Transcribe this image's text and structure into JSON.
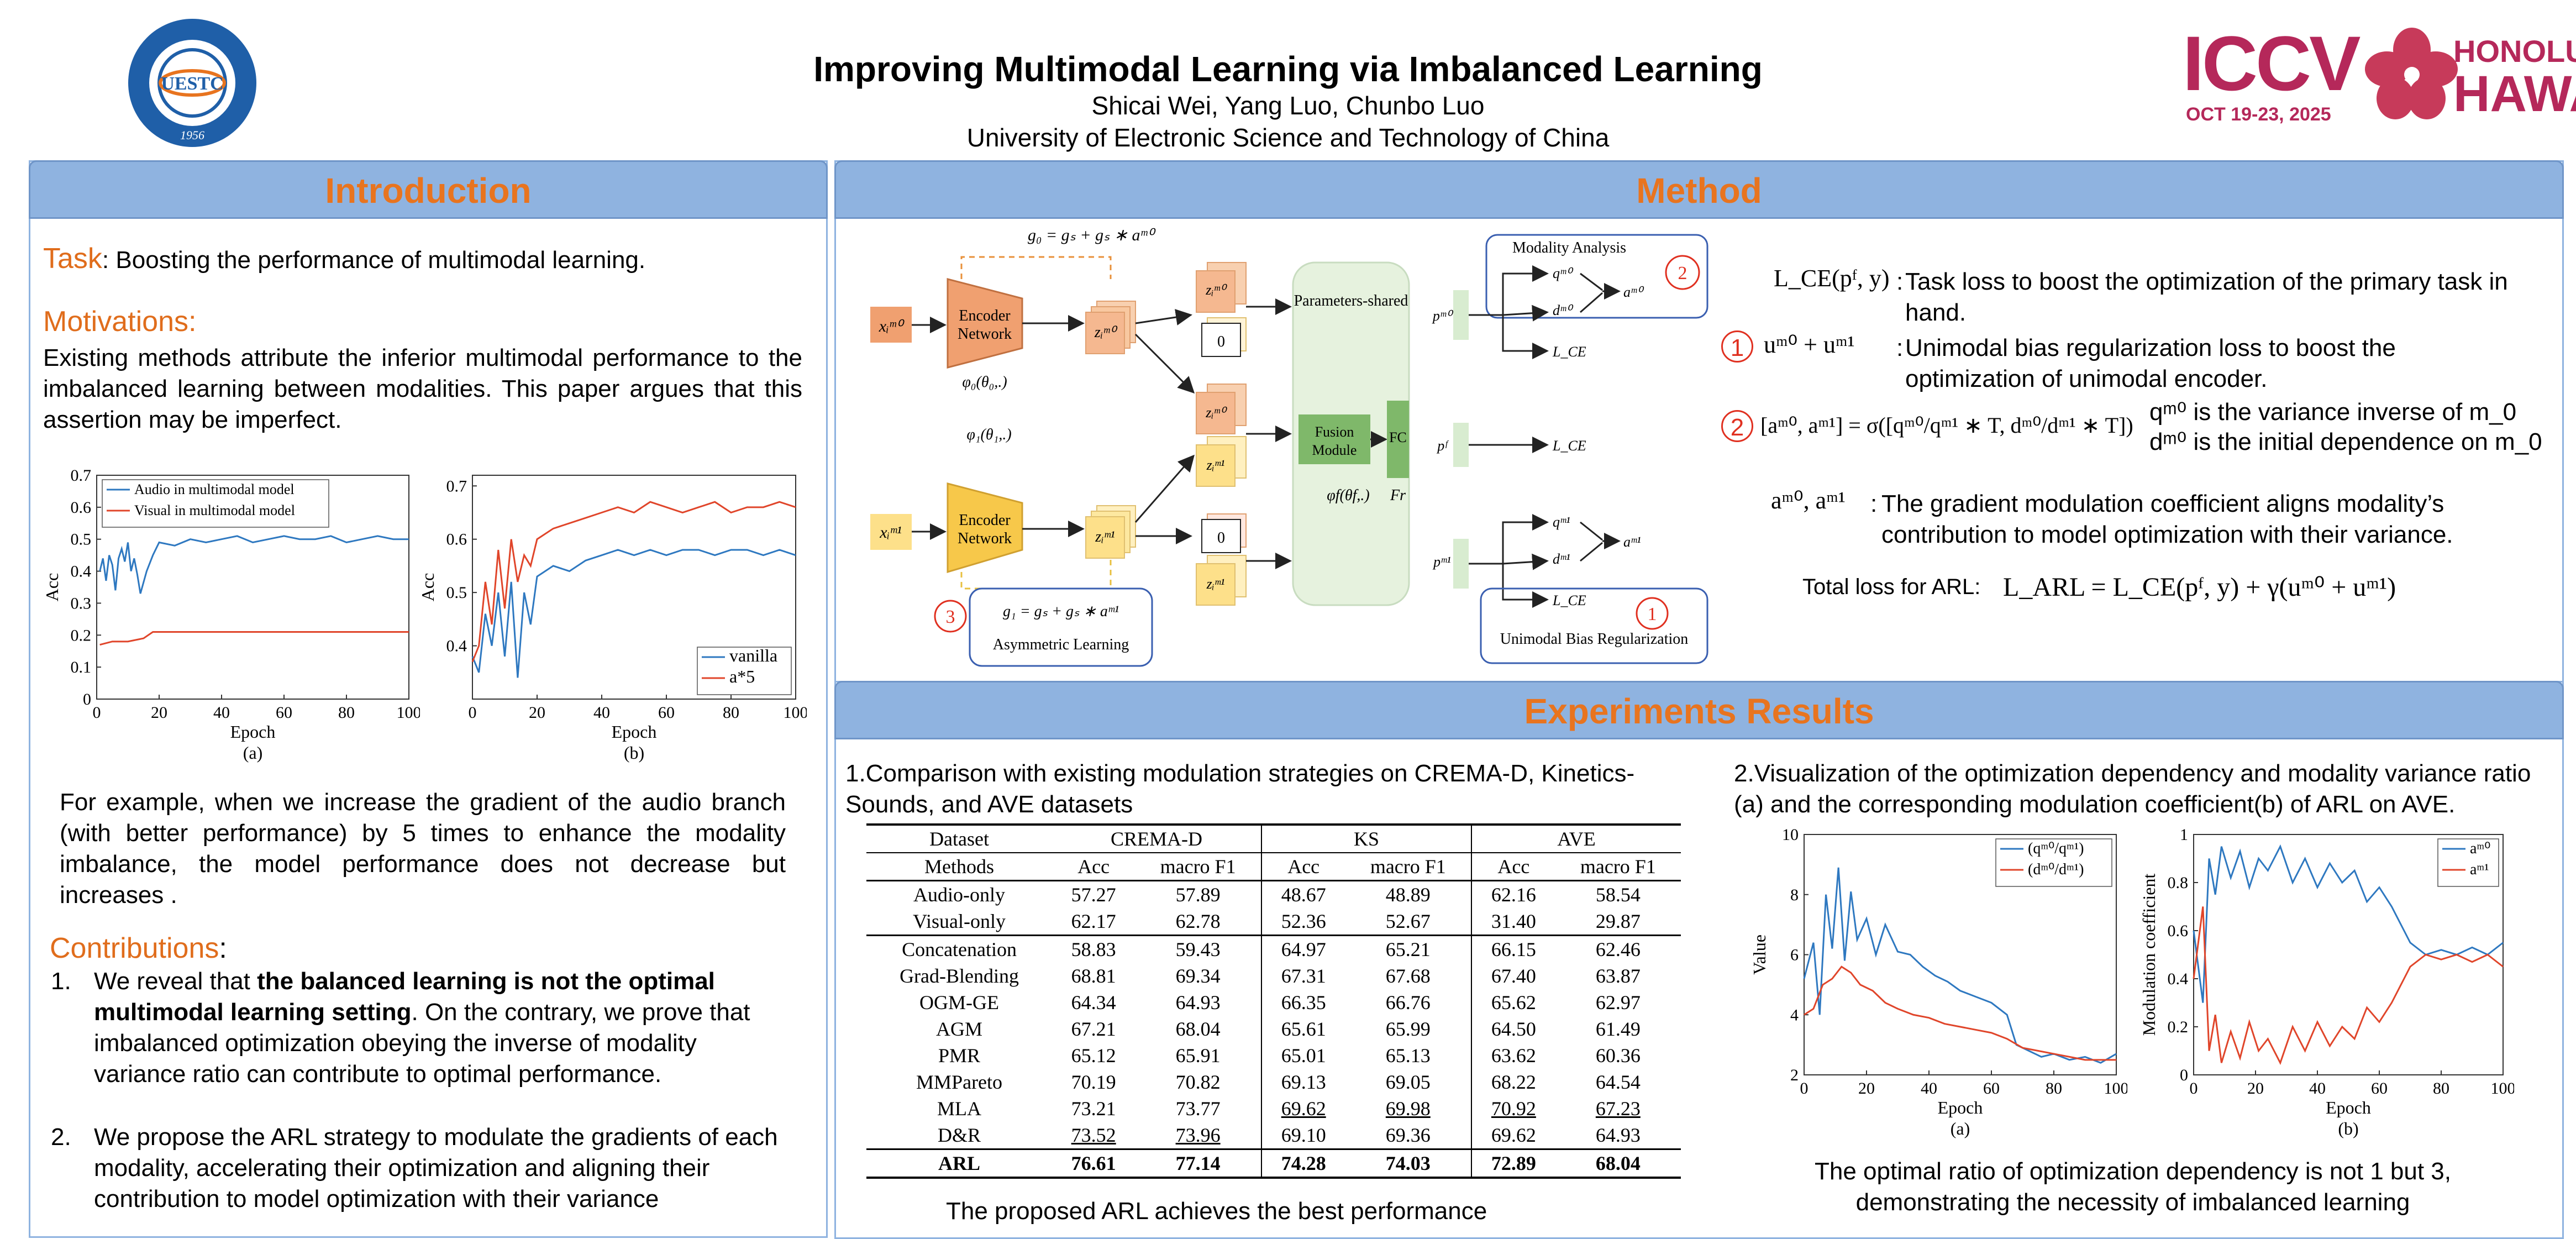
{
  "header": {
    "title": "Improving Multimodal Learning via Imbalanced Learning",
    "authors": "Shicai Wei, Yang Luo, Chunbo Luo",
    "affiliation": "University of Electronic Science and Technology of China",
    "logo_left_text": "UESTC",
    "logo_left_year": "1956",
    "logo_right_iccv": "ICCV",
    "logo_right_dates": "OCT 19-23, 2025",
    "logo_right_city": "HONOLULU",
    "logo_right_state": "HAWAII",
    "colors": {
      "banner": "#8fb3e0",
      "heading": "#e8741f",
      "iccv": "#b5285a"
    }
  },
  "intro": {
    "heading": "Introduction",
    "task_label": "Task",
    "task_text": ": Boosting the performance of multimodal learning.",
    "motivation_label": "Motivations:",
    "motivation_text": "Existing methods attribute the inferior multimodal performance to the imbalanced learning between modalities. This paper argues that this assertion may be imperfect.",
    "example_text": "For example, when we increase the gradient of the audio branch (with better performance) by 5 times to enhance the modality imbalance, the model performance does not decrease but increases .",
    "contrib_label": "Contributions",
    "contrib_colon": ":",
    "contrib1_num": "1.",
    "contrib1_pre": "We reveal that ",
    "contrib1_bold": "the balanced learning is not the optimal multimodal learning setting",
    "contrib1_post": ". On the contrary, we prove that imbalanced optimization obeying the inverse of modality variance ratio can contribute to optimal performance.",
    "contrib2_num": "2.",
    "contrib2_text": "We propose the ARL strategy to modulate the gradients of each modality, accelerating their optimization and aligning their contribution to model optimization with their variance"
  },
  "method": {
    "heading": "Method",
    "diagram": {
      "g0": "g₀ = gₛ + gₛ ∗ aᵐ⁰",
      "g1": "g₁ = gₛ + gₛ ∗ aᵐ¹",
      "x0": "xᵢᵐ⁰",
      "x1": "xᵢᵐ¹",
      "encoder": "Encoder",
      "network": "Network",
      "phi0": "φ₀(θ₀,.)",
      "phi1": "φ₁(θ₁,.)",
      "z0": "zᵢᵐ⁰",
      "z1": "zᵢᵐ¹",
      "zero": "0",
      "params_shared": "Parameters-shared",
      "fusion": "Fusion",
      "module": "Module",
      "fc": "FC",
      "phif": "φf(θf,.)",
      "fr": "Fr",
      "pm0": "pᵐ⁰",
      "pf": "pᶠ",
      "pm1": "pᵐ¹",
      "qm0": "qᵐ⁰",
      "dm0": "dᵐ⁰",
      "am0": "aᵐ⁰",
      "qm1": "qᵐ¹",
      "dm1": "dᵐ¹",
      "am1": "aᵐ¹",
      "lce": "L_CE",
      "modality_analysis": "Modality Analysis",
      "asymmetric": "Asymmetric Learning",
      "unimodal_bias": "Unimodal Bias Regularization",
      "num1": "1",
      "num2": "2",
      "num3": "3"
    },
    "eq1_lhs": "L_CE(pᶠ, y)",
    "eq1_text": "Task loss  to boost the optimization of the primary task in hand.",
    "eq2_num": "1",
    "eq2_lhs": "uᵐ⁰ + uᵐ¹",
    "eq2_text": "Unimodal bias regularization  loss to boost the optimization of unimodal encoder.",
    "eq3_num": "2",
    "eq3_lhs": "[aᵐ⁰, aᵐ¹] = σ([qᵐ⁰/qᵐ¹ ∗ T, dᵐ⁰/dᵐ¹ ∗ T])",
    "eq3_note1": "qᵐ⁰ is the variance inverse of m_0",
    "eq3_note2": "dᵐ⁰ is the initial dependence on m_0",
    "eq4_lhs": "aᵐ⁰, aᵐ¹",
    "eq4_text": "The gradient modulation coefficient aligns modality’s contribution to model optimization with their variance.",
    "total_label": "Total loss for ARL:",
    "total_eq": "L_ARL = L_CE(pᶠ, y) + γ(uᵐ⁰ + uᵐ¹)"
  },
  "experiments": {
    "heading": "Experiments Results",
    "table_caption": "1.Comparison with existing modulation strategies on CREMA-D, Kinetics-Sounds, and AVE datasets",
    "table": {
      "h1": [
        "Dataset",
        "CREMA-D",
        "KS",
        "AVE"
      ],
      "h2": [
        "Methods",
        "Acc",
        "macro F1",
        "Acc",
        "macro F1",
        "Acc",
        "macro F1"
      ],
      "group1": [
        [
          "Audio-only",
          "57.27",
          "57.89",
          "48.67",
          "48.89",
          "62.16",
          "58.54"
        ],
        [
          "Visual-only",
          "62.17",
          "62.78",
          "52.36",
          "52.67",
          "31.40",
          "29.87"
        ]
      ],
      "group2": [
        [
          "Concatenation",
          "58.83",
          "59.43",
          "64.97",
          "65.21",
          "66.15",
          "62.46"
        ],
        [
          "Grad-Blending",
          "68.81",
          "69.34",
          "67.31",
          "67.68",
          "67.40",
          "63.87"
        ],
        [
          "OGM-GE",
          "64.34",
          "64.93",
          "66.35",
          "66.76",
          "65.62",
          "62.97"
        ],
        [
          "AGM",
          "67.21",
          "68.04",
          "65.61",
          "65.99",
          "64.50",
          "61.49"
        ],
        [
          "PMR",
          "65.12",
          "65.91",
          "65.01",
          "65.13",
          "63.62",
          "60.36"
        ],
        [
          "MMPareto",
          "70.19",
          "70.82",
          "69.13",
          "69.05",
          "68.22",
          "64.54"
        ],
        [
          "MLA",
          "73.21",
          "73.77",
          "69.62",
          "69.98",
          "70.92",
          "67.23"
        ],
        [
          "D&R",
          "73.52",
          "73.96",
          "69.10",
          "69.36",
          "69.62",
          "64.93"
        ]
      ],
      "last": [
        "ARL",
        "76.61",
        "77.14",
        "74.28",
        "74.03",
        "72.89",
        "68.04"
      ]
    },
    "table_note": "The proposed ARL achieves the best performance",
    "vis_caption": "2.Visualization of the optimization dependency and modality variance ratio (a) and the corresponding modulation coefficient(b) of ARL on AVE.",
    "vis_note": "The optimal ratio of optimization dependency is not 1 but 3, demonstrating the necessity of imbalanced learning"
  },
  "chart_data": [
    {
      "id": "intro-a",
      "type": "line",
      "panel_label": "(a)",
      "xlabel": "Epoch",
      "ylabel": "Acc",
      "xlim": [
        0,
        100
      ],
      "ylim": [
        0,
        0.7
      ],
      "xticks": [
        "0",
        "20",
        "40",
        "60",
        "80",
        "100"
      ],
      "yticks": [
        "0",
        "0.1",
        "0.2",
        "0.3",
        "0.4",
        "0.5",
        "0.6",
        "0.7"
      ],
      "legend": "top-left",
      "series": [
        {
          "name": "Audio in multimodal model",
          "color": "#2e78c0",
          "x": [
            1,
            2,
            3,
            4,
            5,
            6,
            7,
            8,
            9,
            10,
            11,
            12,
            13,
            14,
            16,
            18,
            20,
            25,
            30,
            35,
            40,
            45,
            50,
            55,
            60,
            65,
            70,
            75,
            80,
            85,
            90,
            95,
            100
          ],
          "values": [
            0.4,
            0.44,
            0.37,
            0.45,
            0.42,
            0.34,
            0.44,
            0.47,
            0.43,
            0.49,
            0.4,
            0.44,
            0.39,
            0.33,
            0.4,
            0.45,
            0.49,
            0.48,
            0.5,
            0.49,
            0.5,
            0.51,
            0.49,
            0.5,
            0.51,
            0.5,
            0.5,
            0.51,
            0.49,
            0.5,
            0.51,
            0.5,
            0.5
          ]
        },
        {
          "name": "Visual in multimodal model",
          "color": "#e0452a",
          "x": [
            1,
            5,
            10,
            15,
            18,
            20,
            30,
            40,
            50,
            60,
            70,
            80,
            90,
            100
          ],
          "values": [
            0.17,
            0.18,
            0.18,
            0.19,
            0.21,
            0.21,
            0.21,
            0.21,
            0.21,
            0.21,
            0.21,
            0.21,
            0.21,
            0.21
          ]
        }
      ]
    },
    {
      "id": "intro-b",
      "type": "line",
      "panel_label": "(b)",
      "xlabel": "Epoch",
      "ylabel": "Acc",
      "xlim": [
        0,
        100
      ],
      "ylim": [
        0.3,
        0.72
      ],
      "xticks": [
        "0",
        "20",
        "40",
        "60",
        "80",
        "100"
      ],
      "yticks": [
        "0.4",
        "0.5",
        "0.6",
        "0.7"
      ],
      "legend": "bottom-right",
      "series": [
        {
          "name": "vanilla",
          "color": "#2e78c0",
          "x": [
            0,
            2,
            4,
            6,
            8,
            10,
            12,
            14,
            16,
            18,
            20,
            25,
            30,
            35,
            40,
            45,
            50,
            55,
            60,
            65,
            70,
            75,
            80,
            85,
            90,
            95,
            100
          ],
          "values": [
            0.38,
            0.35,
            0.46,
            0.4,
            0.5,
            0.38,
            0.52,
            0.34,
            0.5,
            0.44,
            0.53,
            0.55,
            0.54,
            0.56,
            0.57,
            0.58,
            0.57,
            0.58,
            0.57,
            0.58,
            0.58,
            0.57,
            0.58,
            0.58,
            0.57,
            0.58,
            0.57
          ]
        },
        {
          "name": "a*5",
          "color": "#e0452a",
          "x": [
            0,
            2,
            4,
            6,
            8,
            10,
            12,
            14,
            16,
            18,
            20,
            25,
            30,
            35,
            40,
            45,
            50,
            55,
            60,
            65,
            70,
            75,
            80,
            85,
            90,
            95,
            100
          ],
          "values": [
            0.37,
            0.4,
            0.52,
            0.44,
            0.58,
            0.47,
            0.6,
            0.52,
            0.57,
            0.55,
            0.6,
            0.62,
            0.63,
            0.64,
            0.65,
            0.66,
            0.65,
            0.67,
            0.66,
            0.65,
            0.66,
            0.67,
            0.65,
            0.66,
            0.66,
            0.67,
            0.66
          ]
        }
      ]
    },
    {
      "id": "exp-a",
      "type": "line",
      "panel_label": "(a)",
      "xlabel": "Epoch",
      "ylabel": "Value",
      "xlim": [
        0,
        100
      ],
      "ylim": [
        2,
        10
      ],
      "xticks": [
        "0",
        "20",
        "40",
        "60",
        "80",
        "100"
      ],
      "yticks": [
        "2",
        "4",
        "6",
        "8",
        "10"
      ],
      "legend": "top-right",
      "series": [
        {
          "name": "(qᵐ⁰/qᵐ¹)",
          "color": "#2e78c0",
          "x": [
            0,
            3,
            5,
            7,
            9,
            11,
            13,
            15,
            17,
            20,
            23,
            26,
            30,
            34,
            38,
            42,
            46,
            50,
            55,
            60,
            65,
            68,
            72,
            76,
            80,
            85,
            90,
            95,
            100
          ],
          "values": [
            5.2,
            6.4,
            4.0,
            8.0,
            6.2,
            8.9,
            5.8,
            8.1,
            6.5,
            7.2,
            6.0,
            7.0,
            6.1,
            6.0,
            5.6,
            5.3,
            5.1,
            4.8,
            4.6,
            4.4,
            4.0,
            3.0,
            2.8,
            2.6,
            2.7,
            2.5,
            2.6,
            2.4,
            2.7
          ]
        },
        {
          "name": "(dᵐ⁰/dᵐ¹)",
          "color": "#e0452a",
          "x": [
            0,
            3,
            6,
            9,
            12,
            15,
            18,
            22,
            26,
            30,
            35,
            40,
            45,
            50,
            55,
            60,
            65,
            70,
            75,
            80,
            85,
            90,
            95,
            100
          ],
          "values": [
            4.0,
            4.2,
            5.0,
            5.2,
            5.6,
            5.4,
            5.0,
            4.8,
            4.4,
            4.2,
            4.0,
            3.9,
            3.7,
            3.6,
            3.5,
            3.4,
            3.2,
            2.9,
            2.8,
            2.7,
            2.6,
            2.5,
            2.5,
            2.5
          ]
        }
      ]
    },
    {
      "id": "exp-b",
      "type": "line",
      "panel_label": "(b)",
      "xlabel": "Epoch",
      "ylabel": "Modulation coefficient",
      "xlim": [
        0,
        100
      ],
      "ylim": [
        0,
        1
      ],
      "xticks": [
        "0",
        "20",
        "40",
        "60",
        "80",
        "100"
      ],
      "yticks": [
        "0",
        "0.2",
        "0.4",
        "0.6",
        "0.8",
        "1"
      ],
      "legend": "top-right",
      "series": [
        {
          "name": "aᵐ⁰",
          "color": "#2e78c0",
          "x": [
            0,
            3,
            5,
            7,
            9,
            12,
            15,
            18,
            21,
            24,
            28,
            32,
            36,
            40,
            44,
            48,
            52,
            56,
            60,
            64,
            68,
            70,
            75,
            80,
            85,
            90,
            95,
            100
          ],
          "values": [
            0.6,
            0.3,
            0.9,
            0.75,
            0.95,
            0.82,
            0.93,
            0.78,
            0.9,
            0.85,
            0.95,
            0.8,
            0.9,
            0.78,
            0.88,
            0.8,
            0.85,
            0.72,
            0.78,
            0.7,
            0.6,
            0.55,
            0.5,
            0.52,
            0.5,
            0.53,
            0.5,
            0.55
          ]
        },
        {
          "name": "aᵐ¹",
          "color": "#e0452a",
          "x": [
            0,
            3,
            5,
            7,
            9,
            12,
            15,
            18,
            21,
            24,
            28,
            32,
            36,
            40,
            44,
            48,
            52,
            56,
            60,
            64,
            68,
            70,
            75,
            80,
            85,
            90,
            95,
            100
          ],
          "values": [
            0.4,
            0.7,
            0.1,
            0.25,
            0.05,
            0.18,
            0.07,
            0.22,
            0.1,
            0.15,
            0.05,
            0.2,
            0.1,
            0.22,
            0.12,
            0.2,
            0.15,
            0.28,
            0.22,
            0.3,
            0.4,
            0.45,
            0.5,
            0.48,
            0.5,
            0.47,
            0.5,
            0.45
          ]
        }
      ]
    }
  ]
}
